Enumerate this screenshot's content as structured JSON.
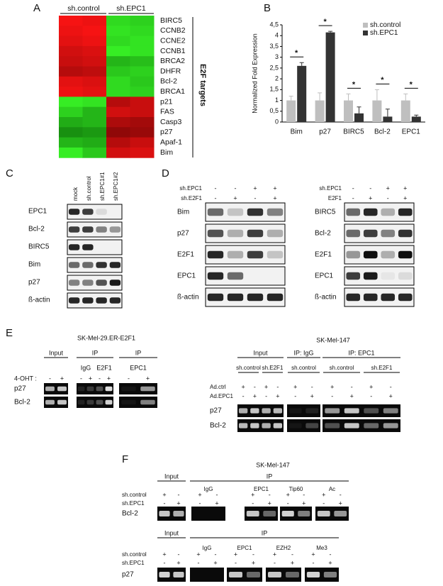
{
  "figure": {
    "panel_labels": [
      "A",
      "B",
      "C",
      "D",
      "E",
      "F"
    ],
    "heatmap": {
      "columns": [
        "sh.control",
        "sh.EPC1"
      ],
      "genes": [
        "BIRC5",
        "CCNB2",
        "CCNE2",
        "CCNB1",
        "BRCA2",
        "DHFR",
        "Bcl-2",
        "BRCA1",
        "p21",
        "FAS",
        "Casp3",
        "p27",
        "Apaf-1",
        "Bim"
      ],
      "group_label": "E2F targets"
    },
    "western_c": {
      "lanes": [
        "mock",
        "sh.control",
        "sh.EPC1#1",
        "sh.EPC1#2"
      ],
      "rows": [
        "EPC1",
        "Bcl-2",
        "BIRC5",
        "Bim",
        "p27",
        "ß-actin"
      ]
    },
    "western_d": [
      {
        "conditions": [
          {
            "name": "sh.EPC1",
            "signs": [
              "-",
              "-",
              "+",
              "+"
            ]
          },
          {
            "name": "sh.E2F1",
            "signs": [
              "-",
              "+",
              "-",
              "+"
            ]
          }
        ],
        "rows": [
          "Bim",
          "p27",
          "E2F1",
          "EPC1",
          "ß-actin"
        ]
      },
      {
        "conditions": [
          {
            "name": "sh.EPC1",
            "signs": [
              "-",
              "-",
              "+",
              "+"
            ]
          },
          {
            "name": "E2F1",
            "signs": [
              "-",
              "+",
              "-",
              "+"
            ]
          }
        ],
        "rows": [
          "BIRC5",
          "Bcl-2",
          "E2F1",
          "EPC1",
          "ß-actin"
        ]
      }
    ],
    "chip_e_left": {
      "title": "SK-Mel-29.ER-E2F1",
      "groups": [
        "Input",
        "IP",
        "IP"
      ],
      "antibodies": [
        "IgG",
        "E2F1",
        "EPC1"
      ],
      "treatment": {
        "name": "4-OHT :",
        "signs": [
          "-",
          "+",
          "-",
          "+",
          "-",
          "+",
          "-",
          "+"
        ]
      },
      "rows": [
        "p27",
        "Bcl-2"
      ]
    },
    "chip_e_right": {
      "title": "SK-Mel-147",
      "groups": [
        "Input",
        "IP: IgG",
        "IP: EPC1"
      ],
      "shrna": [
        "sh.control",
        "sh.E2F1",
        "sh.control",
        "sh.control",
        "sh.E2F1"
      ],
      "conditions": [
        {
          "name": "Ad.ctrl",
          "signs": [
            "+",
            "-",
            "+",
            "-",
            "+",
            "-",
            "+",
            "-",
            "+",
            "-"
          ]
        },
        {
          "name": "Ad.EPC1",
          "signs": [
            "-",
            "+",
            "-",
            "+",
            "-",
            "+",
            "-",
            "+",
            "-",
            "+"
          ]
        }
      ],
      "rows": [
        "p27",
        "Bcl-2"
      ]
    },
    "chip_f": {
      "title": "SK-Mel-147",
      "blots": [
        {
          "groups": [
            "Input",
            "IP"
          ],
          "antibodies": [
            "IgG",
            "EPC1",
            "Tip60",
            "Ac"
          ],
          "conditions": [
            {
              "name": "sh.control",
              "signs": [
                "+",
                "-",
                "+",
                "-",
                "+",
                "-",
                "+",
                "-",
                "+",
                "-"
              ]
            },
            {
              "name": "sh.EPC1",
              "signs": [
                "-",
                "+",
                "-",
                "+",
                "-",
                "+",
                "-",
                "+",
                "-",
                "+"
              ]
            }
          ],
          "row": "Bcl-2"
        },
        {
          "groups": [
            "Input",
            "IP"
          ],
          "antibodies": [
            "IgG",
            "EPC1",
            "EZH2",
            "Me3"
          ],
          "conditions": [
            {
              "name": "sh.control",
              "signs": [
                "+",
                "-",
                "+",
                "-",
                "+",
                "-",
                "+",
                "-",
                "+",
                "-"
              ]
            },
            {
              "name": "sh.EPC1",
              "signs": [
                "-",
                "+",
                "-",
                "+",
                "-",
                "+",
                "-",
                "+",
                "-",
                "+"
              ]
            }
          ],
          "row": "p27"
        }
      ]
    }
  },
  "chart_data": {
    "type": "bar",
    "y_label": "Normalized Fold Expression",
    "categories": [
      "Bim",
      "p27",
      "BIRC5",
      "Bcl-2",
      "EPC1"
    ],
    "series": [
      {
        "name": "sh.control",
        "color": "#bfbfbf",
        "values": [
          1,
          1,
          1,
          1,
          1
        ],
        "errors": [
          0.2,
          0.35,
          0.3,
          0.5,
          0.3
        ]
      },
      {
        "name": "sh.EPC1",
        "color": "#333333",
        "values": [
          2.6,
          4.15,
          0.4,
          0.25,
          0.25
        ],
        "errors": [
          0.15,
          0.05,
          0.3,
          0.35,
          0.07
        ]
      }
    ],
    "annotations": [
      "*",
      "*",
      "*",
      "*",
      "*"
    ],
    "ylim": [
      0,
      4.5
    ],
    "yticks": [
      0,
      {
        "value": 0.5,
        "label": "0,5"
      },
      1,
      {
        "value": 1.5,
        "label": "1,5"
      },
      2,
      {
        "value": 2.5,
        "label": "2,5"
      },
      3,
      {
        "value": 3.5,
        "label": "3,5"
      },
      4,
      {
        "value": 4.5,
        "label": "4,5"
      }
    ],
    "legend": "upper right"
  }
}
